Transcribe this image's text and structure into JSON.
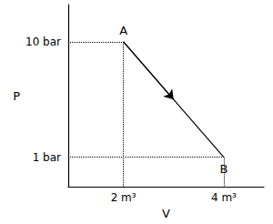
{
  "chart_data": {
    "type": "line",
    "x_label": "V",
    "y_label": "P",
    "x": [
      2,
      4
    ],
    "values": [
      10,
      1
    ],
    "point_labels": [
      "A",
      "B"
    ],
    "color": "#000000",
    "line_style": "solid",
    "marker": "arrow",
    "xlim": [
      0.9,
      4.8
    ],
    "ylim": [
      -1.3,
      12.9
    ],
    "xticks": [
      {
        "value": 2,
        "label": "2 m³"
      },
      {
        "value": 4,
        "label": "4 m³"
      }
    ],
    "yticks": [
      {
        "value": 1,
        "label": "1 bar"
      },
      {
        "value": 10,
        "label": "10 bar"
      }
    ],
    "grid": false
  }
}
